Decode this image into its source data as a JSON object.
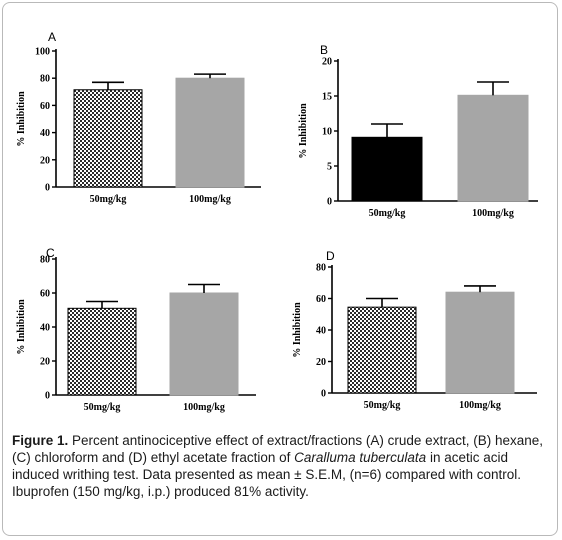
{
  "figure": {
    "caption": {
      "label": "Figure 1.",
      "text_1": " Percent antinociceptive effect of extract/fractions (A) crude extract, (B) hexane, (C) chloroform and (D) ethyl acetate fraction of ",
      "species": "Caralluma tuberculata",
      "text_2": " in acetic acid induced writhing test. Data presented as mean ± S.E.M, (n=6) compared with control. Ibuprofen (150 mg/kg, i.p.) produced 81% activity."
    }
  },
  "colors": {
    "bar_checker": "#2b2b2b",
    "bar_gray": "#a6a6a6",
    "bar_black": "#000000",
    "axis": "#000000"
  },
  "chart_data": [
    {
      "panel_label": "A",
      "type": "bar",
      "ylabel": "% Inhibition",
      "categories": [
        "50mg/kg",
        "100mg/kg"
      ],
      "values": [
        71.5,
        80
      ],
      "errors": [
        5.5,
        3
      ],
      "bar_styles": [
        "checker",
        "gray"
      ],
      "ylim": [
        0,
        100
      ],
      "yticks": [
        0,
        20,
        40,
        60,
        80,
        100
      ],
      "ytick_labels": [
        "0",
        "20",
        "40",
        "60",
        "80",
        "100"
      ]
    },
    {
      "panel_label": "B",
      "type": "bar",
      "ylabel": "% Inhibition",
      "categories": [
        "50mg/kg",
        "100mg/kg"
      ],
      "values": [
        9.1,
        15.1
      ],
      "errors": [
        1.9,
        1.9
      ],
      "bar_styles": [
        "black",
        "gray"
      ],
      "ylim": [
        0,
        20
      ],
      "yticks": [
        0,
        5,
        10,
        15,
        20
      ],
      "ytick_labels": [
        "0",
        "5",
        "10",
        "15",
        "20"
      ]
    },
    {
      "panel_label": "C",
      "type": "bar",
      "ylabel": "% Inhibition",
      "categories": [
        "50mg/kg",
        "100mg/kg"
      ],
      "values": [
        51,
        60
      ],
      "errors": [
        4,
        5
      ],
      "bar_styles": [
        "checker",
        "gray"
      ],
      "ylim": [
        0,
        80
      ],
      "yticks": [
        0,
        20,
        40,
        60,
        80
      ],
      "ytick_labels": [
        "0",
        "20",
        "40",
        "60",
        "80"
      ]
    },
    {
      "panel_label": "D",
      "type": "bar",
      "ylabel": "% Inhibition",
      "categories": [
        "50mg/kg",
        "100mg/kg"
      ],
      "values": [
        54.5,
        64
      ],
      "errors": [
        5.5,
        4
      ],
      "bar_styles": [
        "checker",
        "gray"
      ],
      "ylim": [
        0,
        80
      ],
      "yticks": [
        0,
        20,
        40,
        60,
        80
      ],
      "ytick_labels": [
        "0",
        "20",
        "40",
        "60",
        "80"
      ]
    }
  ]
}
